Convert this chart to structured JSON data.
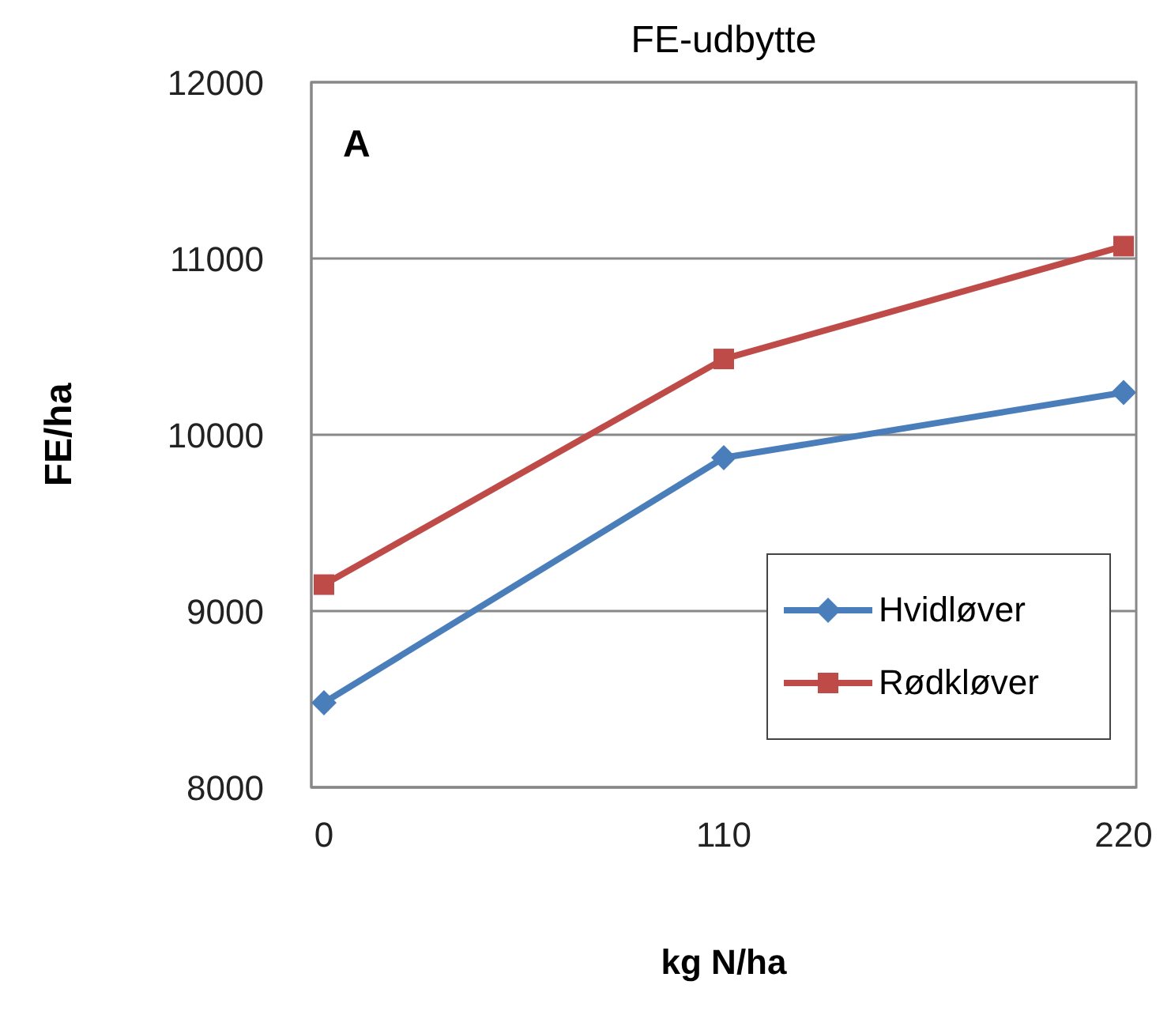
{
  "chart_data": {
    "type": "line",
    "title": "FE-udbytte",
    "xlabel": "kg N/ha",
    "ylabel": "FE/ha",
    "annotations": [
      "A"
    ],
    "categories": [
      "0",
      "110",
      "220"
    ],
    "series": [
      {
        "name": "Hvidløver",
        "color": "#4a7ebb",
        "values": [
          8480,
          9870,
          10240
        ],
        "marker": "diamond"
      },
      {
        "name": "Rødkløver",
        "color": "#be4b48",
        "values": [
          9150,
          10430,
          11070
        ],
        "marker": "square"
      }
    ],
    "ylim": [
      8000,
      12000
    ],
    "yticks": [
      8000,
      9000,
      10000,
      11000,
      12000
    ],
    "grid": "y",
    "legend": "bottom right"
  }
}
